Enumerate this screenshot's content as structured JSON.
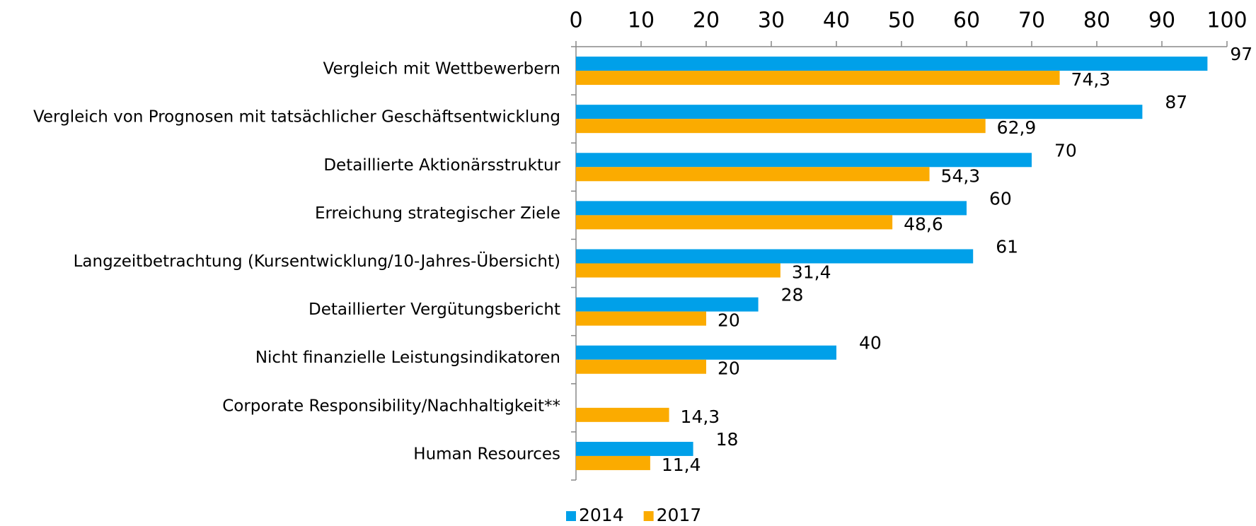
{
  "chart_data": {
    "type": "bar",
    "orientation": "horizontal",
    "categories": [
      "Vergleich mit Wettbewerbern",
      "Vergleich von Prognosen mit tatsächlicher Geschäftsentwicklung",
      "Detaillierte Aktionärsstruktur",
      "Erreichung strategischer Ziele",
      "Langzeitbetrachtung (Kursentwicklung/10-Jahres-Übersicht)",
      "Detaillierter Vergütungsbericht",
      "Nicht finanzielle Leistungsindikatoren",
      "Corporate Responsibility/Nachhaltigkeit**",
      "Human Resources"
    ],
    "series": [
      {
        "name": "2014",
        "color": "#00a0e9",
        "values": [
          97,
          87,
          70,
          60,
          61,
          28,
          40,
          null,
          18
        ]
      },
      {
        "name": "2017",
        "color": "#fbab00",
        "values": [
          74.3,
          62.9,
          54.3,
          48.6,
          31.4,
          20,
          20,
          14.3,
          11.4
        ],
        "value_labels": [
          "74,3",
          "62,9",
          "54,3",
          "48,6",
          "31,4",
          "20",
          "20",
          "14,3",
          "11,4"
        ]
      }
    ],
    "xlim": [
      0,
      100
    ],
    "xticks": [
      0,
      10,
      20,
      30,
      40,
      50,
      60,
      70,
      80,
      90,
      100
    ],
    "legend": "bottom"
  }
}
